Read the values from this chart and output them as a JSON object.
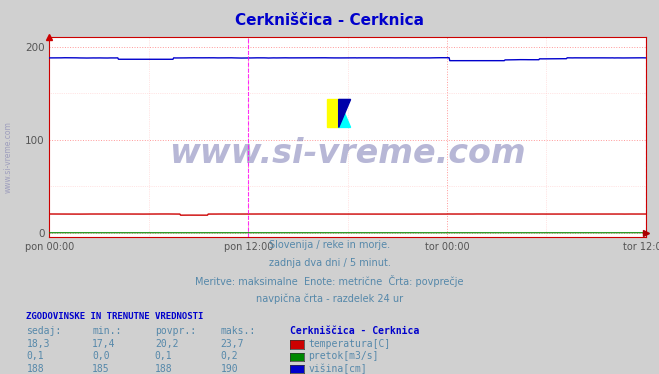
{
  "title": "Cerkniščica - Cerknica",
  "title_color": "#0000cc",
  "bg_color": "#d0d0d0",
  "plot_bg_color": "#ffffff",
  "grid_color_major": "#ff9999",
  "grid_color_minor": "#ffcccc",
  "x_tick_labels": [
    "pon 00:00",
    "pon 12:00",
    "tor 00:00",
    "tor 12:00"
  ],
  "x_tick_positions": [
    0,
    288,
    576,
    864
  ],
  "y_ticks": [
    0,
    100,
    200
  ],
  "ylim": [
    -5,
    210
  ],
  "xlim": [
    0,
    864
  ],
  "temp_color": "#cc0000",
  "pretok_color": "#008800",
  "visina_color": "#0000cc",
  "watermark": "www.si-vreme.com",
  "watermark_color": "#8888bb",
  "subtitle_lines": [
    "Slovenija / reke in morje.",
    "zadnja dva dni / 5 minut.",
    "Meritve: maksimalne  Enote: metrične  Črta: povprečje",
    "navpična črta - razdelek 24 ur"
  ],
  "subtitle_color": "#5588aa",
  "table_header": "ZGODOVINSKE IN TRENUTNE VREDNOSTI",
  "col_headers": [
    "sedaj:",
    "min.:",
    "povpr.:",
    "maks.:"
  ],
  "row1": [
    "18,3",
    "17,4",
    "20,2",
    "23,7"
  ],
  "row2": [
    "0,1",
    "0,0",
    "0,1",
    "0,2"
  ],
  "row3": [
    "188",
    "185",
    "188",
    "190"
  ],
  "legend_title": "Cerkniščica - Cerknica",
  "legend_items": [
    "temperatura[C]",
    "pretok[m3/s]",
    "višina[cm]"
  ],
  "legend_colors": [
    "#cc0000",
    "#008800",
    "#0000cc"
  ],
  "vertical_line_color": "#ff00ff",
  "n_points": 865,
  "visina_avg": 188,
  "temp_avg": 20.2,
  "pretok_avg": 0.1,
  "side_watermark": "www.si-vreme.com"
}
